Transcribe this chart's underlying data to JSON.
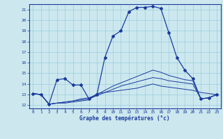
{
  "xlabel": "Graphe des températures (°c)",
  "bg_color": "#cce8ee",
  "grid_color": "#99ccdd",
  "line_color": "#1a3a9e",
  "xlim": [
    -0.5,
    23.5
  ],
  "ylim": [
    11.7,
    21.5
  ],
  "yticks": [
    12,
    13,
    14,
    15,
    16,
    17,
    18,
    19,
    20,
    21
  ],
  "xticks": [
    0,
    1,
    2,
    3,
    4,
    5,
    6,
    7,
    8,
    9,
    10,
    11,
    12,
    13,
    14,
    15,
    16,
    17,
    18,
    19,
    20,
    21,
    22,
    23
  ],
  "series": [
    [
      13.1,
      13.0,
      12.1,
      14.4,
      14.5,
      13.9,
      13.9,
      12.6,
      13.0,
      16.5,
      18.5,
      19.0,
      20.8,
      21.2,
      21.2,
      21.3,
      21.1,
      18.8,
      16.5,
      15.3,
      14.5,
      12.6,
      12.7,
      13.0
    ],
    [
      13.1,
      13.0,
      12.1,
      12.2,
      12.2,
      12.3,
      12.4,
      12.5,
      13.1,
      13.2,
      13.3,
      13.4,
      13.5,
      13.6,
      13.8,
      14.0,
      13.8,
      13.7,
      13.6,
      13.5,
      13.4,
      13.2,
      13.1,
      13.0
    ],
    [
      13.1,
      13.0,
      12.1,
      12.2,
      12.3,
      12.4,
      12.5,
      12.6,
      12.9,
      13.2,
      13.5,
      13.8,
      14.0,
      14.2,
      14.4,
      14.6,
      14.5,
      14.3,
      14.2,
      14.1,
      14.0,
      12.6,
      12.7,
      13.0
    ],
    [
      13.1,
      13.0,
      12.1,
      12.2,
      12.3,
      12.4,
      12.6,
      12.7,
      13.0,
      13.4,
      13.8,
      14.1,
      14.4,
      14.7,
      15.0,
      15.3,
      15.1,
      14.8,
      14.6,
      14.4,
      14.3,
      12.6,
      12.7,
      13.0
    ]
  ]
}
